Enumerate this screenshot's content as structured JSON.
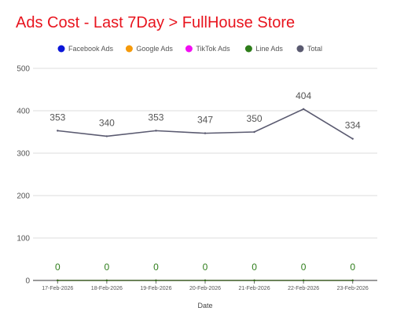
{
  "chart_data": {
    "type": "line",
    "title": "Ads Cost - Last 7Day > FullHouse Store",
    "xlabel": "Date",
    "ylabel": "",
    "ylim": [
      0,
      500
    ],
    "yticks": [
      "0",
      "100",
      "200",
      "300",
      "400",
      "500"
    ],
    "categories": [
      "17-Feb-2026",
      "18-Feb-2026",
      "19-Feb-2026",
      "20-Feb-2026",
      "21-Feb-2026",
      "22-Feb-2026",
      "23-Feb-2026"
    ],
    "grid": true,
    "legend_position": "top",
    "series": [
      {
        "name": "Facebook Ads",
        "color": "#0b16d8",
        "values": [
          0,
          0,
          0,
          0,
          0,
          0,
          0
        ],
        "labels": [
          "",
          "",
          "",
          "",
          "",
          "",
          ""
        ]
      },
      {
        "name": "Google Ads",
        "color": "#f59a0a",
        "values": [
          0,
          0,
          0,
          0,
          0,
          0,
          0
        ],
        "labels": [
          "",
          "",
          "",
          "",
          "",
          "",
          ""
        ]
      },
      {
        "name": "TikTok Ads",
        "color": "#f20ef2",
        "values": [
          0,
          0,
          0,
          0,
          0,
          0,
          0
        ],
        "labels": [
          "",
          "",
          "",
          "",
          "",
          "",
          ""
        ]
      },
      {
        "name": "Line Ads",
        "color": "#2e7d1a",
        "values": [
          0,
          0,
          0,
          0,
          0,
          0,
          0
        ],
        "labels": [
          "0",
          "0",
          "0",
          "0",
          "0",
          "0",
          "0"
        ]
      },
      {
        "name": "Total",
        "color": "#5a5a70",
        "values": [
          353,
          340,
          353,
          347,
          350,
          404,
          334
        ],
        "labels": [
          "353",
          "340",
          "353",
          "347",
          "350",
          "404",
          "334"
        ]
      }
    ]
  }
}
